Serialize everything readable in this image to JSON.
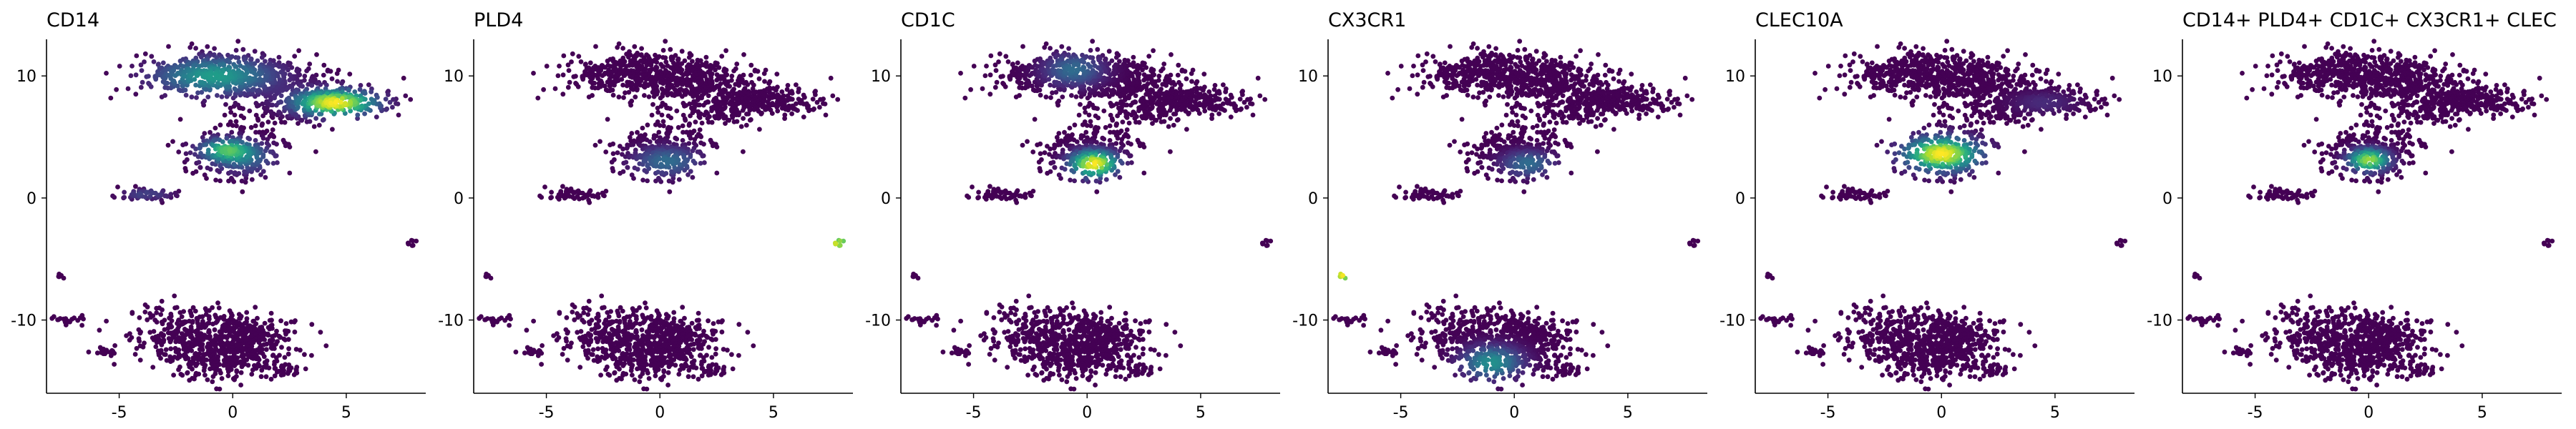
{
  "figure": {
    "layout": "1x6 panels"
  },
  "chart_data": [
    {
      "type": "scatter",
      "title": "CD14",
      "xlabel": "",
      "ylabel": "",
      "xlim": [
        -8.2,
        8.5
      ],
      "ylim": [
        -16,
        13
      ],
      "xticks": [
        -5,
        0,
        5
      ],
      "yticks": [
        -10,
        0,
        10
      ],
      "colormap": "viridis",
      "colorbar": false,
      "grid": false,
      "legend": "none",
      "hotspots": [
        {
          "cluster": "top",
          "x": 4.5,
          "y": 7.8,
          "sx": 1.2,
          "sy": 0.7,
          "level": 1.0
        },
        {
          "cluster": "top",
          "x": -0.8,
          "y": 10.0,
          "sx": 1.8,
          "sy": 1.0,
          "level": 0.55
        },
        {
          "cluster": "mid",
          "x": -0.3,
          "y": 4.0,
          "sx": 0.8,
          "sy": 0.6,
          "level": 0.6
        },
        {
          "cluster": "mid",
          "x": 0.5,
          "y": 3.2,
          "sx": 1.0,
          "sy": 0.8,
          "level": 0.3
        },
        {
          "cluster": "small",
          "x": -3.8,
          "y": 0.3,
          "sx": 0.8,
          "sy": 0.3,
          "level": 0.2
        }
      ]
    },
    {
      "type": "scatter",
      "title": "PLD4",
      "xlabel": "",
      "ylabel": "",
      "xlim": [
        -8.2,
        8.5
      ],
      "ylim": [
        -16,
        13
      ],
      "xticks": [
        -5,
        0,
        5
      ],
      "yticks": [
        -10,
        0,
        10
      ],
      "colormap": "viridis",
      "colorbar": false,
      "grid": false,
      "legend": "none",
      "hotspots": [
        {
          "cluster": "isolated",
          "x": 7.9,
          "y": -3.7,
          "sx": 0.4,
          "sy": 0.3,
          "level": 1.0
        },
        {
          "cluster": "mid",
          "x": 0.3,
          "y": 3.0,
          "sx": 1.0,
          "sy": 0.8,
          "level": 0.35
        }
      ]
    },
    {
      "type": "scatter",
      "title": "CD1C",
      "xlabel": "",
      "ylabel": "",
      "xlim": [
        -8.2,
        8.5
      ],
      "ylim": [
        -16,
        13
      ],
      "xticks": [
        -5,
        0,
        5
      ],
      "yticks": [
        -10,
        0,
        10
      ],
      "colormap": "viridis",
      "colorbar": false,
      "grid": false,
      "legend": "none",
      "hotspots": [
        {
          "cluster": "mid",
          "x": 0.3,
          "y": 2.8,
          "sx": 0.7,
          "sy": 0.7,
          "level": 1.0
        },
        {
          "cluster": "top",
          "x": -0.6,
          "y": 10.5,
          "sx": 0.9,
          "sy": 0.9,
          "level": 0.35
        }
      ]
    },
    {
      "type": "scatter",
      "title": "CX3CR1",
      "xlabel": "",
      "ylabel": "",
      "xlim": [
        -8.2,
        8.5
      ],
      "ylim": [
        -16,
        13
      ],
      "xticks": [
        -5,
        0,
        5
      ],
      "yticks": [
        -10,
        0,
        10
      ],
      "colormap": "viridis",
      "colorbar": false,
      "grid": false,
      "legend": "none",
      "hotspots": [
        {
          "cluster": "far-left",
          "x": -7.5,
          "y": -6.3,
          "sx": 0.4,
          "sy": 0.4,
          "level": 1.0
        },
        {
          "cluster": "bottom",
          "x": -1.0,
          "y": -13.5,
          "sx": 0.9,
          "sy": 0.9,
          "level": 0.5
        },
        {
          "cluster": "mid",
          "x": 0.6,
          "y": 2.8,
          "sx": 0.8,
          "sy": 0.7,
          "level": 0.35
        }
      ]
    },
    {
      "type": "scatter",
      "title": "CLEC10A",
      "xlabel": "",
      "ylabel": "",
      "xlim": [
        -8.2,
        8.5
      ],
      "ylim": [
        -16,
        13
      ],
      "xticks": [
        -5,
        0,
        5
      ],
      "yticks": [
        -10,
        0,
        10
      ],
      "colormap": "viridis",
      "colorbar": false,
      "grid": false,
      "legend": "none",
      "hotspots": [
        {
          "cluster": "mid",
          "x": 0.0,
          "y": 3.6,
          "sx": 1.1,
          "sy": 0.9,
          "level": 1.0
        },
        {
          "cluster": "top",
          "x": 4.5,
          "y": 7.8,
          "sx": 1.0,
          "sy": 0.6,
          "level": 0.12
        }
      ]
    },
    {
      "type": "scatter",
      "title": "CD14+ PLD4+ CD1C+ CX3CR1+ CLEC",
      "xlabel": "",
      "ylabel": "",
      "xlim": [
        -8.2,
        8.5
      ],
      "ylim": [
        -16,
        13
      ],
      "xticks": [
        -5,
        0,
        5
      ],
      "yticks": [
        -10,
        0,
        10
      ],
      "colormap": "viridis",
      "colorbar": false,
      "grid": false,
      "legend": "none",
      "hotspots": [
        {
          "cluster": "mid",
          "x": 0.0,
          "y": 3.1,
          "sx": 0.6,
          "sy": 0.6,
          "level": 0.85
        }
      ]
    }
  ]
}
